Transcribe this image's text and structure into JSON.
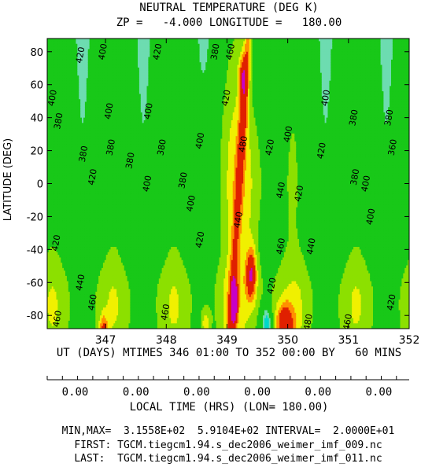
{
  "header": {
    "title": "NEUTRAL TEMPERATURE (DEG K)",
    "subtitle": "ZP =   -4.000 LONGITUDE =   180.00"
  },
  "chart_data": {
    "type": "heatmap",
    "ylabel": "LATITUDE (DEG)",
    "xlabel": "UT (DAYS) MTIMES 346 01:00 TO 352 00:00 BY   60 MINS",
    "xlim": [
      346.04,
      352.0
    ],
    "ylim": [
      -88,
      88
    ],
    "x_ticks": [
      "347",
      "348",
      "349",
      "350",
      "351",
      "352"
    ],
    "x_tick_values": [
      347,
      348,
      349,
      350,
      351,
      352
    ],
    "y_ticks": [
      "80",
      "60",
      "40",
      "20",
      "0",
      "-20",
      "-40",
      "-60",
      "-80"
    ],
    "y_tick_values": [
      80,
      60,
      40,
      20,
      0,
      -20,
      -40,
      -60,
      -80
    ],
    "contour_interval": 20,
    "min": 315.58,
    "max": 591.04,
    "colors": {
      "min": "#00d8c8",
      "low": "#6ddcb0",
      "mid": "#18c818",
      "upper": "#8ce000",
      "high": "#f0f000",
      "hot": "#ff9000",
      "hotter": "#e02000",
      "peak": "#c800c8"
    },
    "contour_labels": [
      {
        "text": "420",
        "x": 346.58,
        "y": 78
      },
      {
        "text": "400",
        "x": 346.95,
        "y": 80
      },
      {
        "text": "420",
        "x": 347.85,
        "y": 80
      },
      {
        "text": "380",
        "x": 348.8,
        "y": 80
      },
      {
        "text": "460",
        "x": 349.05,
        "y": 80
      },
      {
        "text": "400",
        "x": 346.12,
        "y": 52
      },
      {
        "text": "380",
        "x": 346.22,
        "y": 38
      },
      {
        "text": "400",
        "x": 347.05,
        "y": 44
      },
      {
        "text": "400",
        "x": 347.7,
        "y": 44
      },
      {
        "text": "420",
        "x": 348.98,
        "y": 52
      },
      {
        "text": "400",
        "x": 350.62,
        "y": 52
      },
      {
        "text": "380",
        "x": 351.08,
        "y": 40
      },
      {
        "text": "380",
        "x": 351.66,
        "y": 40
      },
      {
        "text": "380",
        "x": 346.63,
        "y": 18
      },
      {
        "text": "380",
        "x": 347.08,
        "y": 22
      },
      {
        "text": "380",
        "x": 347.4,
        "y": 14
      },
      {
        "text": "380",
        "x": 347.92,
        "y": 22
      },
      {
        "text": "400",
        "x": 348.55,
        "y": 26
      },
      {
        "text": "480",
        "x": 349.26,
        "y": 24
      },
      {
        "text": "420",
        "x": 349.7,
        "y": 22
      },
      {
        "text": "400",
        "x": 350.0,
        "y": 30
      },
      {
        "text": "420",
        "x": 350.55,
        "y": 20
      },
      {
        "text": "360",
        "x": 351.72,
        "y": 22
      },
      {
        "text": "420",
        "x": 346.78,
        "y": 4
      },
      {
        "text": "400",
        "x": 347.68,
        "y": 0
      },
      {
        "text": "380",
        "x": 348.27,
        "y": 2
      },
      {
        "text": "380",
        "x": 351.1,
        "y": 4
      },
      {
        "text": "400",
        "x": 351.28,
        "y": 0
      },
      {
        "text": "440",
        "x": 349.88,
        "y": -4
      },
      {
        "text": "420",
        "x": 350.18,
        "y": -6
      },
      {
        "text": "400",
        "x": 348.4,
        "y": -12
      },
      {
        "text": "400",
        "x": 351.36,
        "y": -20
      },
      {
        "text": "440",
        "x": 349.18,
        "y": -22
      },
      {
        "text": "420",
        "x": 346.18,
        "y": -36
      },
      {
        "text": "420",
        "x": 348.55,
        "y": -34
      },
      {
        "text": "460",
        "x": 349.88,
        "y": -38
      },
      {
        "text": "440",
        "x": 350.38,
        "y": -38
      },
      {
        "text": "440",
        "x": 346.58,
        "y": -60
      },
      {
        "text": "420",
        "x": 349.73,
        "y": -62
      },
      {
        "text": "460",
        "x": 346.78,
        "y": -72
      },
      {
        "text": "420",
        "x": 351.7,
        "y": -72
      },
      {
        "text": "460",
        "x": 346.2,
        "y": -82
      },
      {
        "text": "460",
        "x": 347.98,
        "y": -78
      },
      {
        "text": "480",
        "x": 350.33,
        "y": -84
      },
      {
        "text": "460",
        "x": 350.98,
        "y": -84
      }
    ]
  },
  "local_time_axis": {
    "title": "LOCAL TIME (HRS) (LON= 180.00)",
    "tick_labels": [
      "0.00",
      "0.00",
      "0.00",
      "0.00",
      "0.00",
      "0.00"
    ],
    "tick_values": [
      346.5,
      347.5,
      348.5,
      349.5,
      350.5,
      351.5
    ]
  },
  "footer": {
    "minmax": "MIN,MAX=  3.1558E+02  5.9104E+02 INTERVAL=  2.0000E+01",
    "first": "FIRST: TGCM.tiegcm1.94.s_dec2006_weimer_imf_009.nc",
    "last": "LAST:  TGCM.tiegcm1.94.s_dec2006_weimer_imf_011.nc"
  }
}
